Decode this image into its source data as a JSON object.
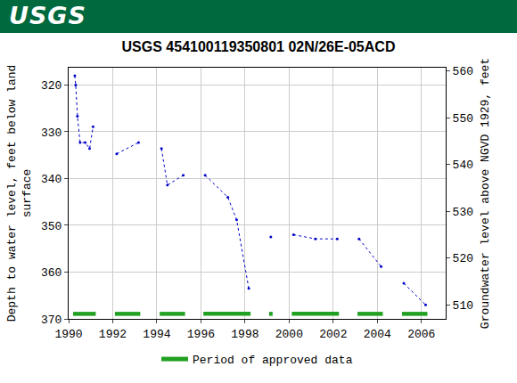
{
  "chart_data": {
    "type": "line",
    "banner": "USGS",
    "title": "USGS 454100119350801 02N/26E-05ACD",
    "ylabel": "Depth to water level, feet below land\nsurface",
    "y2label": "Groundwater level above NGVD 1929, feet",
    "x": [
      1990.28,
      1990.32,
      1990.4,
      1990.52,
      1990.75,
      1990.95,
      1991.11,
      null,
      1992.18,
      1993.17,
      null,
      1994.21,
      1994.48,
      1995.2,
      null,
      1996.19,
      1997.22,
      1997.62,
      1998.17,
      null,
      1999.17,
      null,
      2000.2,
      2001.19,
      2002.18,
      null,
      2003.17,
      2004.17,
      null,
      2005.2,
      2006.19
    ],
    "series": [
      {
        "color": "#0000cc",
        "marker": "dot",
        "line_style": "dot",
        "values": [
          318.0,
          320.0,
          326.7,
          332.3,
          332.3,
          333.6,
          328.9,
          null,
          334.7,
          332.3,
          null,
          333.6,
          341.4,
          339.3,
          null,
          339.3,
          344.0,
          348.8,
          363.5,
          null,
          352.5,
          null,
          352.0,
          352.9,
          352.9,
          null,
          352.9,
          358.8,
          null,
          362.4,
          367.0
        ]
      }
    ],
    "approved_periods": {
      "name": "Period of approved data",
      "color": "#22a022",
      "periods": [
        [
          1990.2,
          1991.23
        ],
        [
          1992.1,
          1993.25
        ],
        [
          1994.13,
          1995.28
        ],
        [
          1996.11,
          1998.25
        ],
        [
          1999.09,
          1999.25
        ],
        [
          2000.12,
          2002.26
        ],
        [
          2003.1,
          2004.25
        ],
        [
          2005.12,
          2006.27
        ]
      ]
    },
    "xlim": [
      1990,
      2007.1
    ],
    "xticks": [
      1990,
      1992,
      1994,
      1996,
      1998,
      2000,
      2002,
      2004,
      2006
    ],
    "ylim": [
      370,
      316.3
    ],
    "yticks": [
      320,
      330,
      340,
      350,
      360,
      370
    ],
    "y2lim": [
      507,
      560.7
    ],
    "y2ticks": [
      510,
      520,
      530,
      540,
      550,
      560
    ],
    "grid": true,
    "legend": "bottom"
  }
}
